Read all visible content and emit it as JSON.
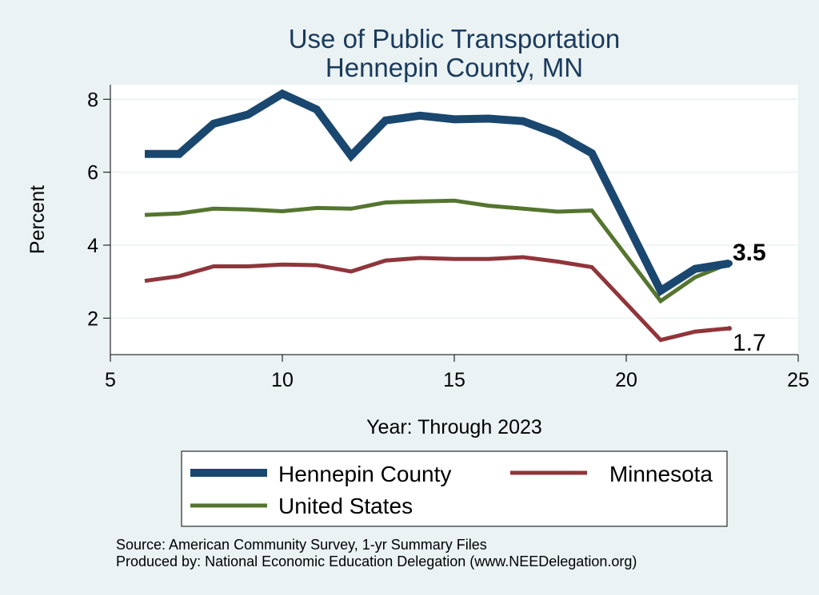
{
  "chart_data": {
    "type": "line",
    "title": [
      "Use of Public Transportation",
      "Hennepin County, MN"
    ],
    "xlabel": "Year: Through 2023",
    "ylabel": "Percent",
    "xlim": [
      5,
      25
    ],
    "ylim": [
      1.0,
      8.4
    ],
    "xticks": [
      5,
      10,
      15,
      20,
      25
    ],
    "yticks": [
      2,
      4,
      6,
      8
    ],
    "grid": true,
    "x": [
      6,
      7,
      8,
      9,
      10,
      11,
      12,
      13,
      14,
      15,
      16,
      17,
      18,
      19,
      21,
      22,
      23
    ],
    "series": [
      {
        "name": "Hennepin County",
        "color": "#1a476f",
        "values": [
          6.5,
          6.5,
          7.33,
          7.58,
          8.15,
          7.72,
          6.45,
          7.42,
          7.55,
          7.45,
          7.47,
          7.4,
          7.05,
          6.52,
          2.75,
          3.35,
          3.5
        ]
      },
      {
        "name": "Minnesota",
        "color": "#90353b",
        "values": [
          3.02,
          3.15,
          3.42,
          3.42,
          3.47,
          3.45,
          3.28,
          3.58,
          3.65,
          3.62,
          3.62,
          3.67,
          3.55,
          3.4,
          1.4,
          1.63,
          1.72
        ]
      },
      {
        "name": "United States",
        "color": "#55752f",
        "values": [
          4.83,
          4.87,
          5.0,
          4.98,
          4.93,
          5.02,
          5.0,
          5.17,
          5.2,
          5.22,
          5.08,
          5.0,
          4.92,
          4.95,
          2.47,
          3.12,
          3.5
        ]
      }
    ],
    "annotations": [
      {
        "text": "3.5",
        "x": 23,
        "y": 3.5,
        "series": "Hennepin County"
      },
      {
        "text": "1.7",
        "x": 23,
        "y": 1.72,
        "series": "Minnesota"
      }
    ],
    "legend": {
      "position": "bottom",
      "entries": [
        "Hennepin County",
        "Minnesota",
        "United States"
      ]
    },
    "note": [
      "Source: American Community Survey, 1-yr Summary Files",
      "Produced by: National Economic Education Delegation (www.NEEDelegation.org)"
    ]
  }
}
